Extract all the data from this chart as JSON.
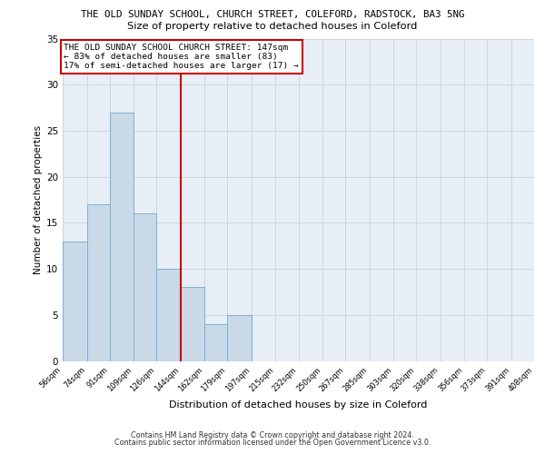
{
  "title_line1": "THE OLD SUNDAY SCHOOL, CHURCH STREET, COLEFORD, RADSTOCK, BA3 5NG",
  "title_line2": "Size of property relative to detached houses in Coleford",
  "xlabel": "Distribution of detached houses by size in Coleford",
  "ylabel": "Number of detached properties",
  "bin_edges": [
    56,
    74,
    91,
    109,
    126,
    144,
    162,
    179,
    197,
    215,
    232,
    250,
    267,
    285,
    303,
    320,
    338,
    356,
    373,
    391,
    408
  ],
  "bin_labels": [
    "56sqm",
    "74sqm",
    "91sqm",
    "109sqm",
    "126sqm",
    "144sqm",
    "162sqm",
    "179sqm",
    "197sqm",
    "215sqm",
    "232sqm",
    "250sqm",
    "267sqm",
    "285sqm",
    "303sqm",
    "320sqm",
    "338sqm",
    "356sqm",
    "373sqm",
    "391sqm",
    "408sqm"
  ],
  "bar_values": [
    13,
    17,
    27,
    16,
    10,
    8,
    4,
    5,
    0,
    0,
    0,
    0,
    0,
    0,
    0,
    0,
    0,
    0,
    0,
    0
  ],
  "bar_color": "#c9d9e8",
  "bar_edge_color": "#7bafd4",
  "vline_color": "#cc0000",
  "vline_x": 144,
  "annotation_text": "THE OLD SUNDAY SCHOOL CHURCH STREET: 147sqm\n← 83% of detached houses are smaller (83)\n17% of semi-detached houses are larger (17) →",
  "annotation_box_edge": "#cc0000",
  "annotation_box_face": "#ffffff",
  "ylim": [
    0,
    35
  ],
  "yticks": [
    0,
    5,
    10,
    15,
    20,
    25,
    30,
    35
  ],
  "grid_color": "#ccd6e0",
  "bg_color": "#e8eef5",
  "footer_line1": "Contains HM Land Registry data © Crown copyright and database right 2024.",
  "footer_line2": "Contains public sector information licensed under the Open Government Licence v3.0.",
  "fig_width": 6.0,
  "fig_height": 5.0,
  "fig_dpi": 100
}
